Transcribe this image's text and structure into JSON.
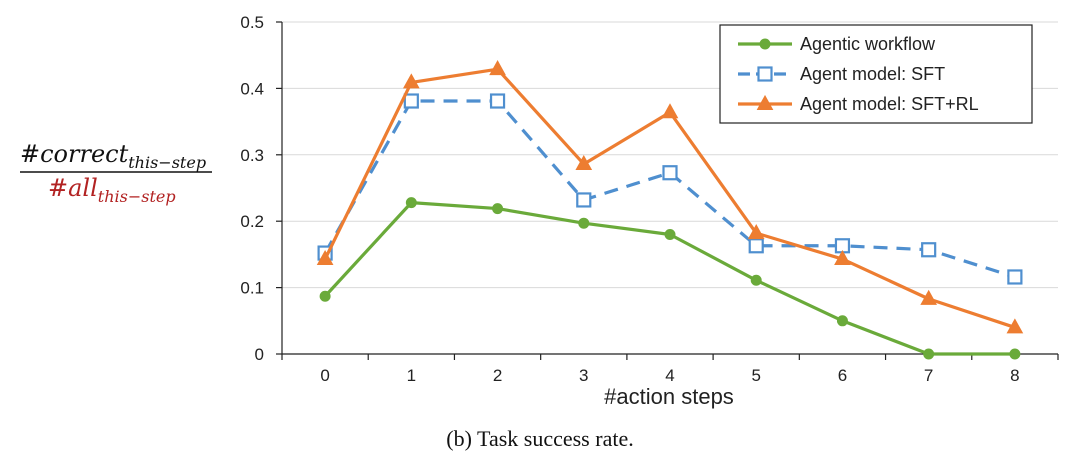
{
  "chart_data": {
    "type": "line",
    "title": "",
    "xlabel": "#action steps",
    "ylabel": "",
    "x": [
      0,
      1,
      2,
      3,
      4,
      5,
      6,
      7,
      8
    ],
    "xticks": [
      "0",
      "1",
      "2",
      "3",
      "4",
      "5",
      "6",
      "7",
      "8"
    ],
    "ylim": [
      0,
      0.5
    ],
    "yticks": [
      "0",
      "0.1",
      "0.2",
      "0.3",
      "0.4",
      "0.5"
    ],
    "grid": true,
    "legend_position": "top-right",
    "series": [
      {
        "name": "Agentic workflow",
        "color": "#6aaa3a",
        "marker": "circle",
        "dash": "solid",
        "values": [
          0.087,
          0.228,
          0.219,
          0.197,
          0.18,
          0.111,
          0.05,
          0.0,
          0.0
        ]
      },
      {
        "name": "Agent model: SFT",
        "color": "#4f8fcf",
        "marker": "square",
        "dash": "dashed",
        "values": [
          0.152,
          0.381,
          0.381,
          0.232,
          0.273,
          0.163,
          0.163,
          0.157,
          0.116
        ]
      },
      {
        "name": "Agent model: SFT+RL",
        "color": "#ed7d31",
        "marker": "triangle",
        "dash": "solid",
        "values": [
          0.143,
          0.409,
          0.429,
          0.286,
          0.364,
          0.182,
          0.143,
          0.083,
          0.04
        ]
      }
    ]
  },
  "formula": {
    "numerator_main": "#correct",
    "numerator_sub": "this−step",
    "denominator_main": "#all",
    "denominator_sub": "this−step"
  },
  "caption": "(b) Task success rate."
}
